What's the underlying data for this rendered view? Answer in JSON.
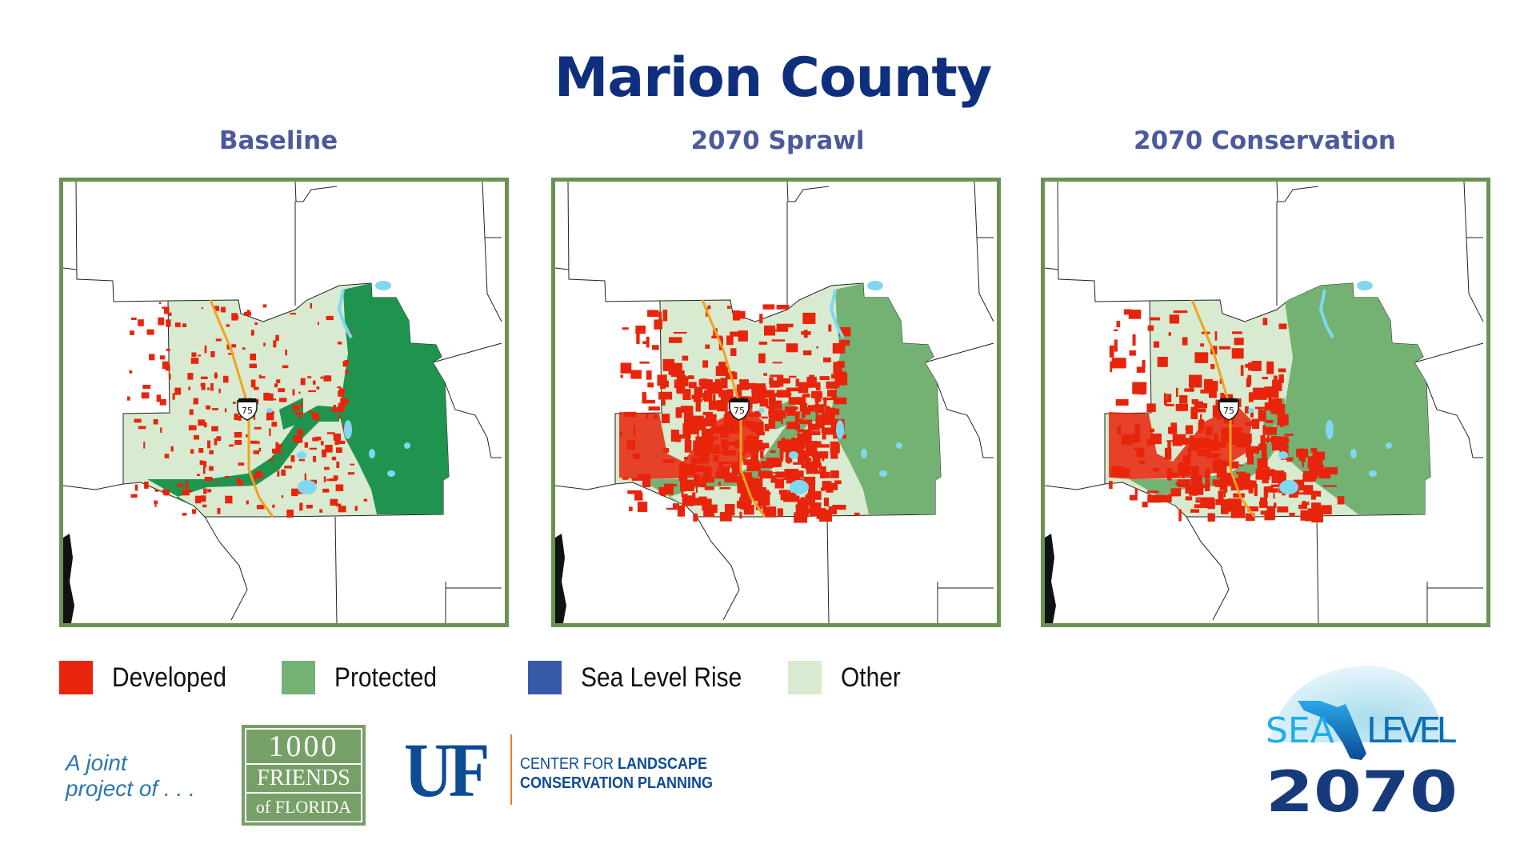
{
  "title": "Marion County",
  "maps": [
    {
      "label": "Baseline",
      "scenario": "baseline",
      "highway_shield": "75"
    },
    {
      "label": "2070 Sprawl",
      "scenario": "sprawl",
      "highway_shield": "75"
    },
    {
      "label": "2070 Conservation",
      "scenario": "conservation",
      "highway_shield": "75"
    }
  ],
  "legend": [
    {
      "label": "Developed",
      "color": "#e8240c"
    },
    {
      "label": "Protected",
      "color": "#74b274"
    },
    {
      "label": "Sea Level Rise",
      "color": "#3659a8"
    },
    {
      "label": "Other",
      "color": "#d8ebd0"
    }
  ],
  "colors": {
    "frame": "#6a9253",
    "water": "#7fd8f0",
    "highway": "#f4a11d",
    "baseline_protected": "#1f944f"
  },
  "footer": {
    "joint_line1": "A joint",
    "joint_line2": "project of . . .",
    "friends_logo": [
      "1000",
      "FRIENDS",
      "of FLORIDA"
    ],
    "uf_logo": "UF",
    "clcp_line1_a": "CENTER FOR ",
    "clcp_line1_b": "LANDSCAPE",
    "clcp_line2": "CONSERVATION PLANNING",
    "slr_logo": {
      "sea": "SEA",
      "level": "LEVEL",
      "year": "2070"
    }
  }
}
